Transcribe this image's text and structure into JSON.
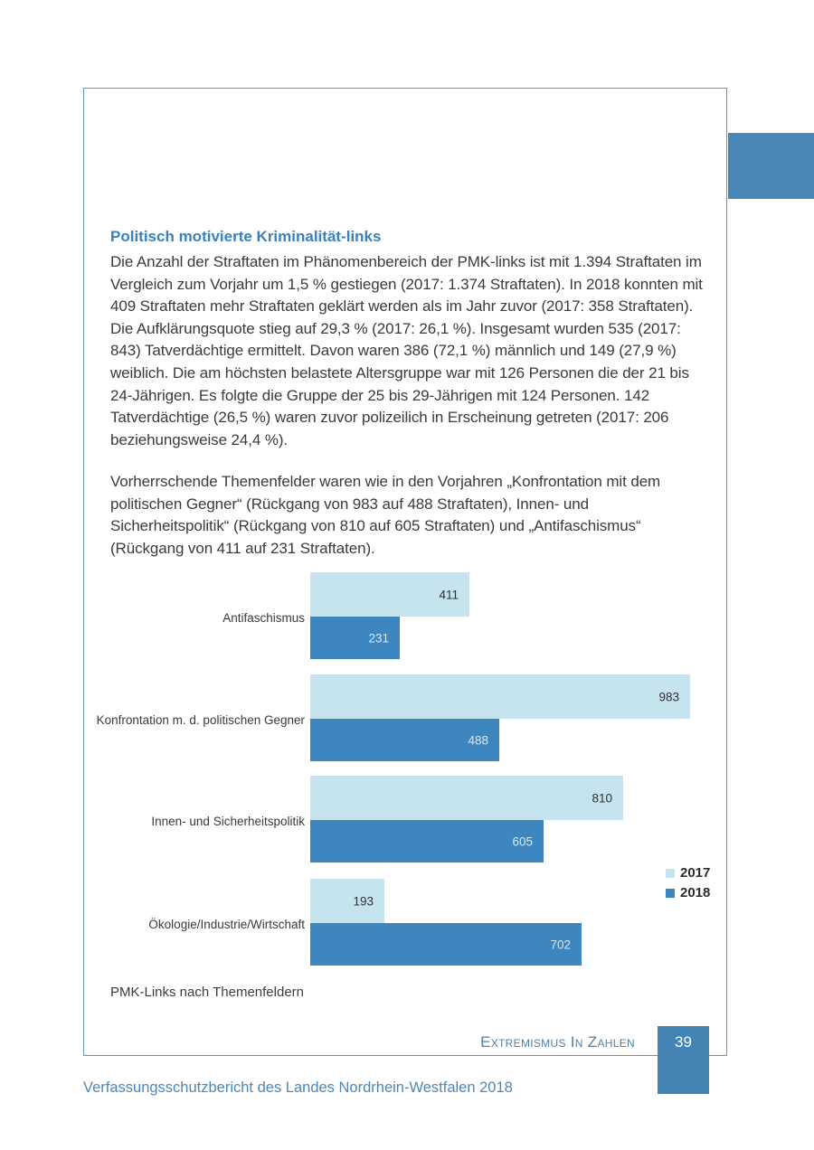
{
  "page": {
    "heading": "Politisch motivierte Kriminalität-links",
    "paragraph1": "Die Anzahl der Straftaten im Phänomenbereich der PMK-links ist mit 1.394 Straftaten im Vergleich zum Vorjahr um 1,5 % gestiegen (2017: 1.374 Straftaten). In 2018 konnten mit 409 Straftaten mehr Straftaten geklärt werden als im Jahr zuvor (2017: 358 Straftaten). Die Aufklärungsquote stieg auf 29,3 % (2017: 26,1 %). Insgesamt wurden 535 (2017: 843) Tatverdächtige ermittelt. Davon waren 386 (72,1 %) männlich und 149 (27,9 %) weiblich. Die am höchsten belastete Altersgruppe war mit 126 Personen die der 21 bis 24-Jährigen. Es folgte die Gruppe der 25 bis 29-Jährigen mit 124 Personen. 142 Tatverdächtige (26,5 %) waren zuvor polizeilich in Erscheinung getreten (2017: 206 beziehungsweise 24,4 %).",
    "paragraph2": "Vorherrschende Themenfelder waren wie in den Vorjahren „Konfrontation mit dem politischen Gegner“ (Rückgang von 983 auf 488 Straftaten), Innen- und Sicherheitspolitik“ (Rückgang von 810 auf 605 Straftaten) und „Antifaschismus“ (Rückgang von 411 auf 231 Straftaten).",
    "caption": "PMK-Links nach Themenfeldern",
    "footer_section": "Extremismus In Zahlen",
    "page_number": "39",
    "footer_bottom": "Verfassungsschutzbericht des Landes Nordrhein-Westfalen 2018"
  },
  "colors": {
    "frame_border": "#5a98c2",
    "chapter_tab": "#4a87b6",
    "heading_blue": "#3c80ba",
    "page_number_box": "#4484b5",
    "footer_blue": "#4b87b9"
  },
  "chart_data": {
    "type": "bar",
    "orientation": "horizontal",
    "title": "PMK-Links nach Themenfeldern",
    "categories": [
      "Antifaschismus",
      "Konfrontation m. d. politischen Gegner",
      "Innen- und Sicherheitspolitik",
      "Ökologie/Industrie/Wirtschaft"
    ],
    "series": [
      {
        "name": "2017",
        "color": "#c6e4ee",
        "value_label_color": "#2f2f33",
        "values": [
          411,
          983,
          810,
          193
        ]
      },
      {
        "name": "2018",
        "color": "#3e86bf",
        "value_label_color": "#d8e8f2",
        "values": [
          231,
          488,
          605,
          702
        ]
      }
    ],
    "xmax": 983,
    "grid": false,
    "legend_position": "right",
    "value_labels": "inside-end"
  }
}
